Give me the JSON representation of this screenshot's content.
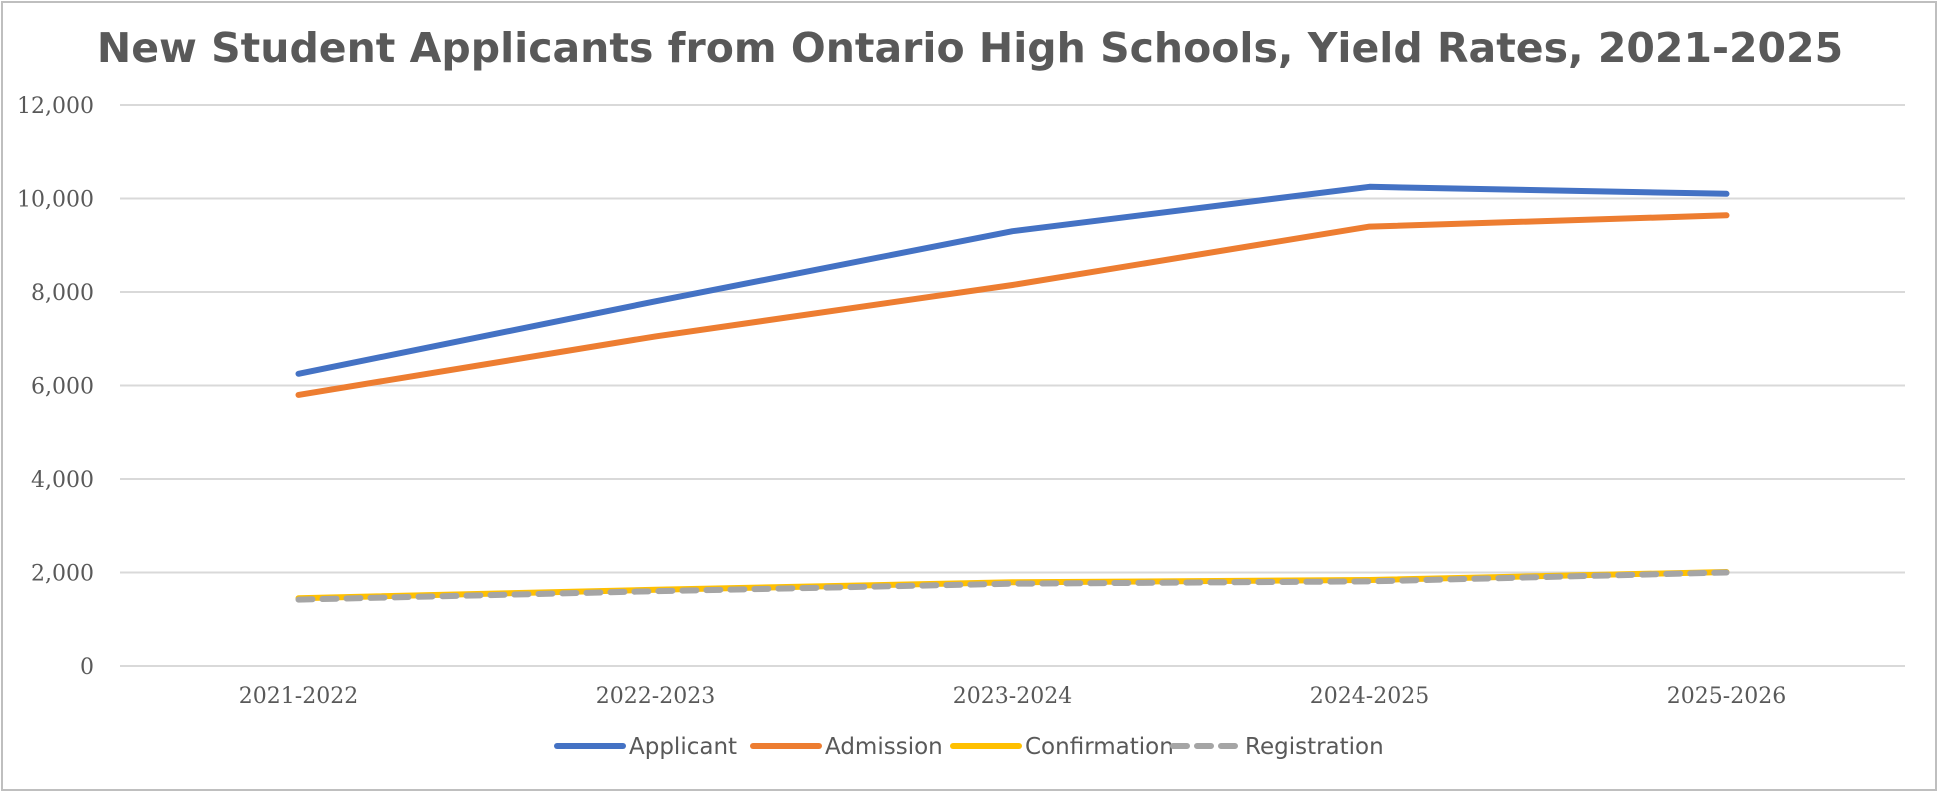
{
  "chart_data": {
    "type": "line",
    "title": "New Student Applicants from Ontario High Schools, Yield Rates, 2021-2025",
    "categories": [
      "2021-2022",
      "2022-2023",
      "2023-2024",
      "2024-2025",
      "2025-2026"
    ],
    "ylim": [
      0,
      12000
    ],
    "yticks": [
      0,
      2000,
      4000,
      6000,
      8000,
      10000,
      12000
    ],
    "ytick_labels": [
      "0",
      "2,000",
      "4,000",
      "6,000",
      "8,000",
      "10,000",
      "12,000"
    ],
    "grid": true,
    "legend_position": "bottom",
    "series": [
      {
        "name": "Applicant",
        "color": "#4472c4",
        "dash": "solid",
        "values": [
          6250,
          7800,
          9300,
          10250,
          10100
        ]
      },
      {
        "name": "Admission",
        "color": "#ed7d31",
        "dash": "solid",
        "values": [
          5800,
          7050,
          8150,
          9400,
          9640
        ]
      },
      {
        "name": "Confirmation",
        "color": "#ffc000",
        "dash": "solid",
        "values": [
          1450,
          1630,
          1790,
          1840,
          2010
        ]
      },
      {
        "name": "Registration",
        "color": "#a5a5a5",
        "dash": "dashed",
        "values": [
          1420,
          1600,
          1760,
          1810,
          2000
        ]
      }
    ]
  }
}
